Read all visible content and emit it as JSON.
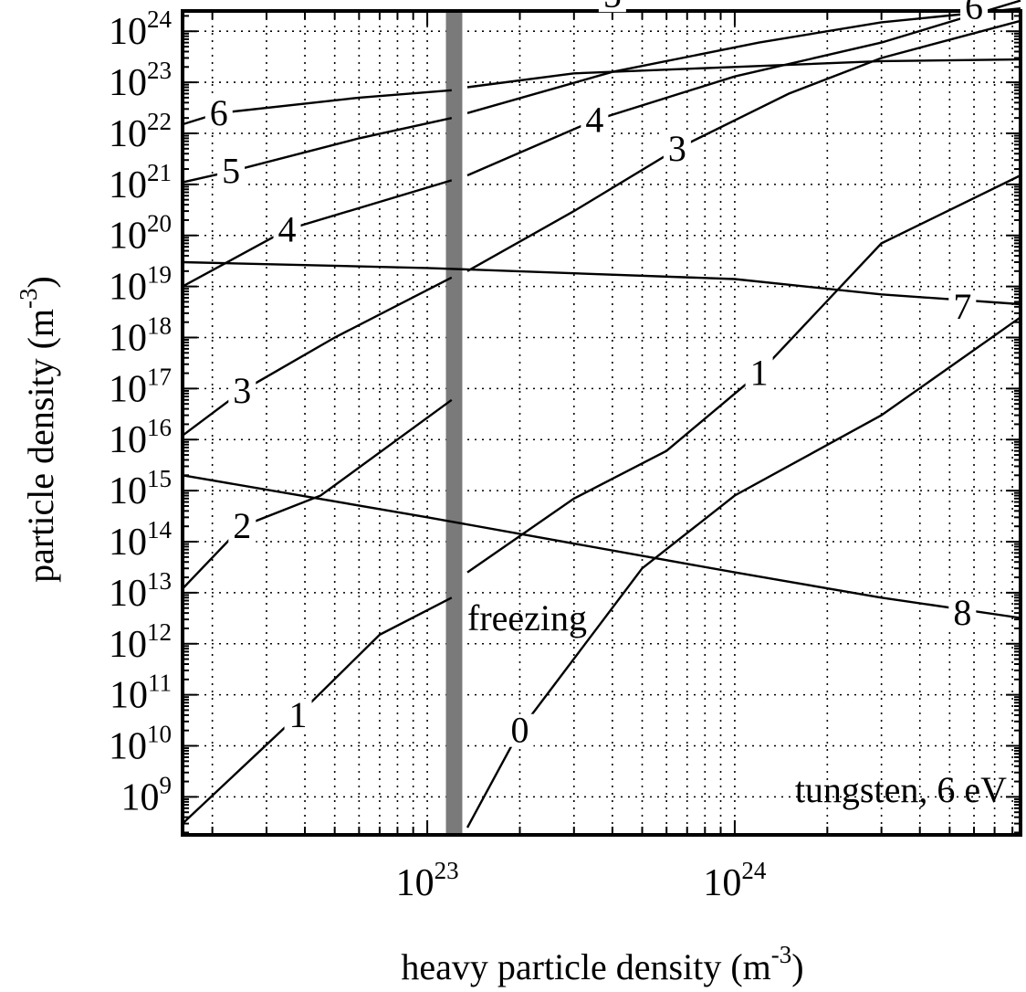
{
  "chart_data": {
    "type": "line",
    "xlabel": "heavy particle density (m",
    "xlabel_exp": "-3",
    "xlabel_close": ")",
    "ylabel": "particle density (m",
    "ylabel_exp": "-3",
    "ylabel_close": ")",
    "x_scale": "log",
    "y_scale": "log",
    "xlim": [
      1.6e+22,
      8.5e+24
    ],
    "ylim": [
      180000000.0,
      2.5e+24
    ],
    "grid": true,
    "x_ticks": [
      {
        "base": "10",
        "exp": "23",
        "value": 1e+23
      },
      {
        "base": "10",
        "exp": "24",
        "value": 1e+24
      }
    ],
    "y_ticks": [
      {
        "base": "10",
        "exp": "9",
        "value": 1000000000.0
      },
      {
        "base": "10",
        "exp": "10",
        "value": 10000000000.0
      },
      {
        "base": "10",
        "exp": "11",
        "value": 100000000000.0
      },
      {
        "base": "10",
        "exp": "12",
        "value": 1000000000000.0
      },
      {
        "base": "10",
        "exp": "13",
        "value": 10000000000000.0
      },
      {
        "base": "10",
        "exp": "14",
        "value": 100000000000000.0
      },
      {
        "base": "10",
        "exp": "15",
        "value": 1000000000000000.0
      },
      {
        "base": "10",
        "exp": "16",
        "value": 1e+16
      },
      {
        "base": "10",
        "exp": "17",
        "value": 1e+17
      },
      {
        "base": "10",
        "exp": "18",
        "value": 1e+18
      },
      {
        "base": "10",
        "exp": "19",
        "value": 1e+19
      },
      {
        "base": "10",
        "exp": "20",
        "value": 1e+20
      },
      {
        "base": "10",
        "exp": "21",
        "value": 1e+21
      },
      {
        "base": "10",
        "exp": "22",
        "value": 1e+22
      },
      {
        "base": "10",
        "exp": "23",
        "value": 1e+23
      },
      {
        "base": "10",
        "exp": "24",
        "value": 1e+24
      }
    ],
    "series_upper": [
      {
        "name": "0",
        "label_at": [
          2e+23,
          20000000000.0
        ],
        "points": [
          [
            1.35e+23,
            250000000.0
          ],
          [
            2e+23,
            20000000000.0
          ],
          [
            5e+23,
            30000000000000.0
          ],
          [
            1e+24,
            800000000000000.0
          ],
          [
            3e+24,
            3e+16
          ],
          [
            8.5e+24,
            2.5e+18
          ]
        ]
      },
      {
        "name": "1",
        "label_at": [
          1.2e+24,
          2e+17
        ],
        "points": [
          [
            1.35e+23,
            25000000000000.0
          ],
          [
            3e+23,
            700000000000000.0
          ],
          [
            6e+23,
            6000000000000000.0
          ],
          [
            1.2e+24,
            2e+17
          ],
          [
            3e+24,
            7e+19
          ],
          [
            8.5e+24,
            1.5e+21
          ]
        ]
      },
      {
        "name": "3",
        "label_at": [
          6.5e+23,
          5e+21
        ],
        "points": [
          [
            1.35e+23,
            2e+19
          ],
          [
            3e+23,
            3e+20
          ],
          [
            6.5e+23,
            5e+21
          ],
          [
            1.5e+24,
            6e+22
          ],
          [
            3e+24,
            3e+23
          ],
          [
            8.5e+24,
            1.6e+24
          ]
        ]
      },
      {
        "name": "4",
        "label_at": [
          3.5e+23,
          1.8e+22
        ],
        "points": [
          [
            1.35e+23,
            1.5e+21
          ],
          [
            3.5e+23,
            1.8e+22
          ],
          [
            1e+24,
            1.3e+23
          ],
          [
            3e+24,
            6e+23
          ],
          [
            8.5e+24,
            4e+24
          ]
        ]
      },
      {
        "name": "5",
        "label_at": [
          4e+23,
          5e+24
        ],
        "points": [
          [
            1.35e+23,
            2.5e+22
          ],
          [
            4e+23,
            1.6e+23
          ],
          [
            1.2e+24,
            6e+23
          ],
          [
            3e+24,
            1.5e+24
          ],
          [
            8.5e+24,
            2.8e+24
          ]
        ]
      },
      {
        "name": "6",
        "label_at": [
          6e+24,
          3e+24
        ],
        "points": [
          [
            1.35e+23,
            8e+22
          ],
          [
            3e+23,
            1.5e+23
          ],
          [
            1e+24,
            2e+23
          ],
          [
            3e+24,
            2.6e+23
          ],
          [
            8.5e+24,
            2.8e+23
          ]
        ]
      }
    ],
    "series_lower": [
      {
        "name": "1",
        "label_at": [
          3.8e+22,
          40000000000.0
        ],
        "points": [
          [
            1.6e+22,
            300000000.0
          ],
          [
            3.8e+22,
            40000000000.0
          ],
          [
            7e+22,
            1500000000000.0
          ],
          [
            1.2e+23,
            8000000000000.0
          ]
        ]
      },
      {
        "name": "2",
        "label_at": [
          2.5e+22,
          200000000000000.0
        ],
        "points": [
          [
            1.6e+22,
            12000000000000.0
          ],
          [
            2.5e+22,
            200000000000000.0
          ],
          [
            4.5e+22,
            800000000000000.0
          ],
          [
            1.2e+23,
            6e+16
          ]
        ]
      },
      {
        "name": "3",
        "label_at": [
          2.5e+22,
          9e+16
        ],
        "points": [
          [
            1.6e+22,
            1.2e+16
          ],
          [
            2.5e+22,
            9e+16
          ],
          [
            5e+22,
            1e+18
          ],
          [
            1.2e+23,
            1.5e+19
          ]
        ]
      },
      {
        "name": "4",
        "label_at": [
          3.5e+22,
          1.3e+20
        ],
        "points": [
          [
            1.6e+22,
            1e+19
          ],
          [
            3.5e+22,
            1.3e+20
          ],
          [
            1.2e+23,
            1.2e+21
          ]
        ]
      },
      {
        "name": "5",
        "label_at": [
          2.3e+22,
          1.8e+21
        ],
        "points": [
          [
            1.6e+22,
            1.1e+21
          ],
          [
            2.3e+22,
            1.8e+21
          ],
          [
            6e+22,
            8e+21
          ],
          [
            1.2e+23,
            2e+22
          ]
        ]
      },
      {
        "name": "6",
        "label_at": [
          2.1e+22,
          2.5e+22
        ],
        "points": [
          [
            1.6e+22,
            1.5e+22
          ],
          [
            2.1e+22,
            2.5e+22
          ],
          [
            6e+22,
            5e+22
          ],
          [
            1.2e+23,
            7e+22
          ]
        ]
      }
    ],
    "series_flat": [
      {
        "name": "7",
        "label_at": [
          5.5e+24,
          4e+18
        ],
        "points": [
          [
            1.6e+22,
            3e+19
          ],
          [
            1e+23,
            2.3e+19
          ],
          [
            1e+24,
            1.4e+19
          ],
          [
            3e+24,
            7e+18
          ],
          [
            8.5e+24,
            4.5e+18
          ]
        ]
      },
      {
        "name": "8",
        "label_at": [
          5.5e+24,
          4000000000000.0
        ],
        "points": [
          [
            1.6e+22,
            2000000000000000.0
          ],
          [
            1e+23,
            300000000000000.0
          ],
          [
            1e+24,
            25000000000000.0
          ],
          [
            3e+24,
            8000000000000.0
          ],
          [
            8.5e+24,
            3200000000000.0
          ]
        ]
      }
    ],
    "freezing": {
      "label": "freezing",
      "x_from": 1.15e+23,
      "x_to": 1.3e+23,
      "fill": "#7a7a7a"
    },
    "annotation": "tungsten, 6 eV"
  }
}
